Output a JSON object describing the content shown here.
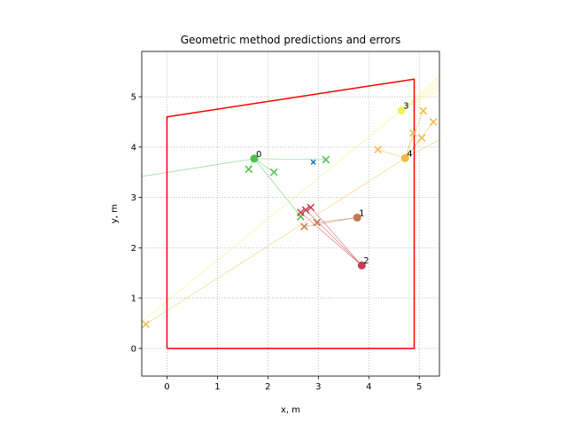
{
  "chart_data": {
    "type": "scatter",
    "title": "Geometric method predictions and errors",
    "xlabel": "x, m",
    "ylabel": "y, m",
    "xlim": [
      -0.5,
      5.4
    ],
    "ylim": [
      -0.55,
      5.9
    ],
    "xticks": [
      "0",
      "1",
      "2",
      "3",
      "4",
      "5"
    ],
    "yticks": [
      "0",
      "1",
      "2",
      "3",
      "4",
      "5"
    ],
    "grid": true,
    "boundary_color": "#ff0000",
    "boundary": [
      [
        0,
        0
      ],
      [
        4.9,
        0
      ],
      [
        4.9,
        5.35
      ],
      [
        0,
        4.6
      ],
      [
        0,
        0
      ]
    ],
    "reference_point": {
      "x": 2.9,
      "y": 3.7,
      "color": "#1f77b4"
    },
    "sources": [
      {
        "label": "0",
        "x": 1.73,
        "y": 3.77,
        "color": "#4cc24c",
        "predictions": [
          [
            1.62,
            3.56
          ],
          [
            2.12,
            3.5
          ],
          [
            3.15,
            3.75
          ],
          [
            2.65,
            2.62
          ],
          [
            -0.6,
            3.4
          ]
        ]
      },
      {
        "label": "1",
        "x": 3.77,
        "y": 2.6,
        "color": "#c8784a",
        "predictions": [
          [
            2.72,
            2.42
          ],
          [
            2.97,
            2.5
          ]
        ]
      },
      {
        "label": "2",
        "x": 3.86,
        "y": 1.65,
        "color": "#c83c50",
        "predictions": [
          [
            2.65,
            2.7
          ],
          [
            2.75,
            2.75
          ],
          [
            2.85,
            2.8
          ]
        ]
      },
      {
        "label": "3",
        "x": 4.65,
        "y": 4.73,
        "color": "#f0f060",
        "predictions": [
          [
            5.5,
            5.5
          ],
          [
            5.5,
            5.4
          ],
          [
            5.5,
            5.3
          ],
          [
            5.5,
            5.2
          ],
          [
            -0.6,
            0.45
          ]
        ]
      },
      {
        "label": "4",
        "x": 4.72,
        "y": 3.78,
        "color": "#f5b845",
        "predictions": [
          [
            4.18,
            3.95
          ],
          [
            4.88,
            4.28
          ],
          [
            5.05,
            4.18
          ],
          [
            5.08,
            4.72
          ],
          [
            5.28,
            4.5
          ],
          [
            -0.42,
            0.48
          ],
          [
            5.5,
            4.2
          ]
        ]
      }
    ]
  }
}
